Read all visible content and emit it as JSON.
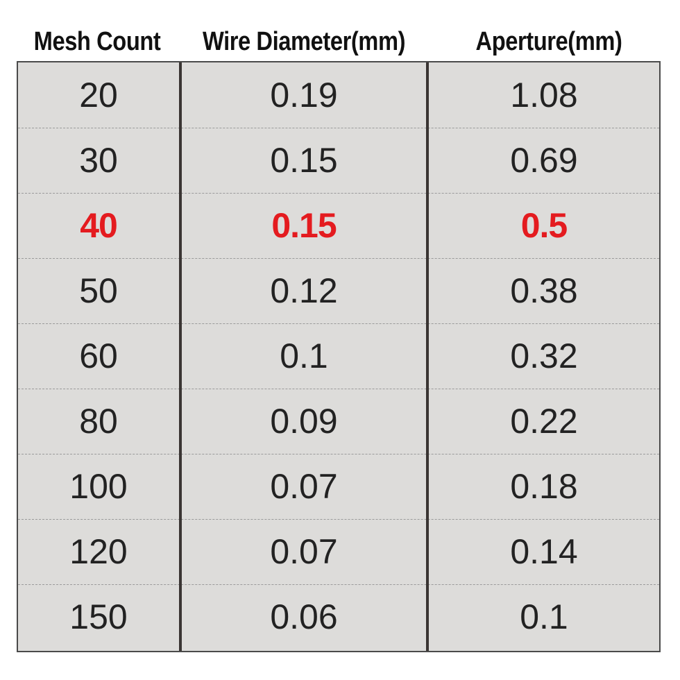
{
  "table": {
    "headers": [
      "Mesh Count",
      "Wire Diameter(mm)",
      "Aperture(mm)"
    ],
    "highlight_color": "#e41b1f",
    "rows": [
      {
        "mesh": "20",
        "wire": "0.19",
        "aperture": "1.08",
        "highlight": false
      },
      {
        "mesh": "30",
        "wire": "0.15",
        "aperture": "0.69",
        "highlight": false
      },
      {
        "mesh": "40",
        "wire": "0.15",
        "aperture": "0.5",
        "highlight": true
      },
      {
        "mesh": "50",
        "wire": "0.12",
        "aperture": "0.38",
        "highlight": false
      },
      {
        "mesh": "60",
        "wire": "0.1",
        "aperture": "0.32",
        "highlight": false
      },
      {
        "mesh": "80",
        "wire": "0.09",
        "aperture": "0.22",
        "highlight": false
      },
      {
        "mesh": "100",
        "wire": "0.07",
        "aperture": "0.18",
        "highlight": false
      },
      {
        "mesh": "120",
        "wire": "0.07",
        "aperture": "0.14",
        "highlight": false
      },
      {
        "mesh": "150",
        "wire": "0.06",
        "aperture": "0.1",
        "highlight": false
      }
    ]
  }
}
